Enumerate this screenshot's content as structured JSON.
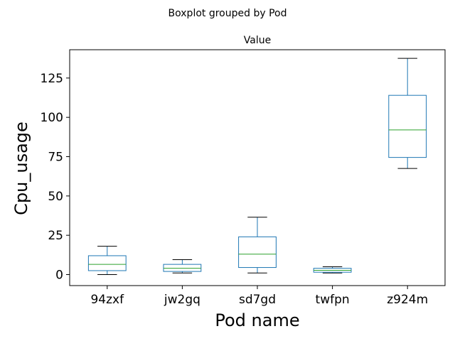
{
  "chart_data": {
    "type": "boxplot",
    "suptitle": "Boxplot grouped by Pod",
    "title": "Value",
    "xlabel": "Pod name",
    "ylabel": "Cpu_usage",
    "categories": [
      "94zxf",
      "jw2gq",
      "sd7gd",
      "twfpn",
      "z924m"
    ],
    "boxes": [
      {
        "category": "94zxf",
        "whislo": 0,
        "q1": 2.5,
        "med": 6.5,
        "q3": 12,
        "whishi": 18
      },
      {
        "category": "jw2gq",
        "whislo": 1,
        "q1": 2,
        "med": 4,
        "q3": 6.5,
        "whishi": 9.5
      },
      {
        "category": "sd7gd",
        "whislo": 1,
        "q1": 4.5,
        "med": 13,
        "q3": 24,
        "whishi": 36.5
      },
      {
        "category": "twfpn",
        "whislo": 1,
        "q1": 1.5,
        "med": 2.7,
        "q3": 4,
        "whishi": 5
      },
      {
        "category": "z924m",
        "whislo": 67.5,
        "q1": 74.5,
        "med": 92,
        "q3": 114,
        "whishi": 137.5
      }
    ],
    "ylim": [
      -7,
      143
    ],
    "yticks": [
      0,
      25,
      50,
      75,
      100,
      125
    ],
    "ytick_labels": [
      "0",
      "25",
      "50",
      "75",
      "100",
      "125"
    ],
    "grid": false,
    "colors": {
      "box": "#1f77b4",
      "median": "#2ca02c",
      "whisker_cap": "#000000",
      "axes": "#000000"
    }
  }
}
